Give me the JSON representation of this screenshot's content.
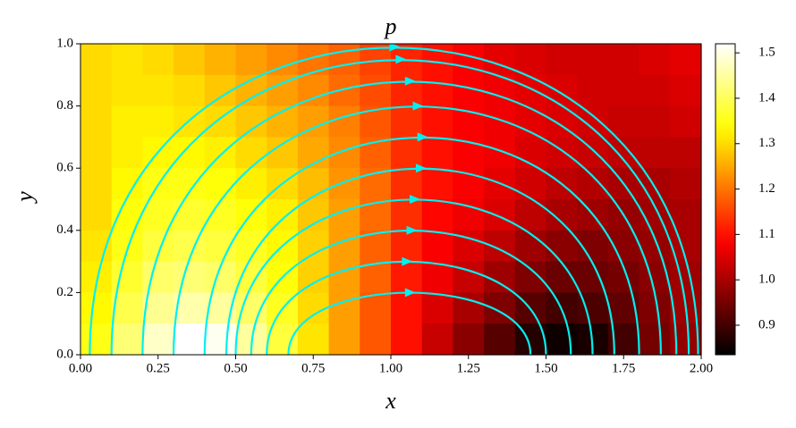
{
  "chart_data": {
    "type": "heatmap",
    "title": "p",
    "xlabel": "x",
    "ylabel": "y",
    "xlim": [
      0,
      2
    ],
    "ylim": [
      0,
      1
    ],
    "xticks": [
      {
        "value": 0,
        "label": "0.00"
      },
      {
        "value": 0.25,
        "label": "0.25"
      },
      {
        "value": 0.5,
        "label": "0.50"
      },
      {
        "value": 0.75,
        "label": "0.75"
      },
      {
        "value": 1,
        "label": "1.00"
      },
      {
        "value": 1.25,
        "label": "1.25"
      },
      {
        "value": 1.5,
        "label": "1.50"
      },
      {
        "value": 1.75,
        "label": "1.75"
      },
      {
        "value": 2,
        "label": "2.00"
      }
    ],
    "yticks": [
      {
        "value": 0,
        "label": "0.0"
      },
      0.2,
      0.4,
      0.6,
      0.8,
      {
        "value": 1,
        "label": "1.0"
      }
    ],
    "colormap": "hot",
    "clim": [
      0.835,
      1.52
    ],
    "colorbar_ticks": [
      0.9,
      {
        "value": 1,
        "label": "1.0"
      },
      1.1,
      1.2,
      1.3,
      1.4,
      1.5
    ],
    "z": [
      [
        1.3,
        1.31,
        1.3,
        1.28,
        1.26,
        1.24,
        1.22,
        1.2,
        1.18,
        1.15,
        1.12,
        1.1,
        1.08,
        1.06,
        1.05,
        1.04,
        1.04,
        1.04,
        1.05,
        1.06
      ],
      [
        1.3,
        1.31,
        1.31,
        1.3,
        1.28,
        1.26,
        1.24,
        1.22,
        1.19,
        1.16,
        1.12,
        1.1,
        1.08,
        1.07,
        1.06,
        1.05,
        1.04,
        1.04,
        1.04,
        1.05
      ],
      [
        1.3,
        1.32,
        1.32,
        1.31,
        1.3,
        1.28,
        1.26,
        1.24,
        1.21,
        1.17,
        1.13,
        1.1,
        1.08,
        1.07,
        1.06,
        1.05,
        1.04,
        1.03,
        1.03,
        1.04
      ],
      [
        1.3,
        1.32,
        1.33,
        1.33,
        1.32,
        1.3,
        1.28,
        1.25,
        1.22,
        1.18,
        1.13,
        1.1,
        1.08,
        1.07,
        1.05,
        1.04,
        1.03,
        1.02,
        1.02,
        1.02
      ],
      [
        1.3,
        1.33,
        1.35,
        1.35,
        1.34,
        1.32,
        1.3,
        1.27,
        1.23,
        1.19,
        1.13,
        1.1,
        1.08,
        1.06,
        1.04,
        1.02,
        1.01,
        1.0,
        1.0,
        1.01
      ],
      [
        1.3,
        1.34,
        1.36,
        1.37,
        1.36,
        1.34,
        1.32,
        1.28,
        1.24,
        1.19,
        1.13,
        1.09,
        1.07,
        1.05,
        1.02,
        1.0,
        0.99,
        0.98,
        0.99,
        1.0
      ],
      [
        1.31,
        1.35,
        1.38,
        1.39,
        1.38,
        1.36,
        1.33,
        1.29,
        1.24,
        1.18,
        1.12,
        1.08,
        1.05,
        1.02,
        0.99,
        0.97,
        0.96,
        0.97,
        0.98,
        1.0
      ],
      [
        1.32,
        1.37,
        1.41,
        1.42,
        1.41,
        1.38,
        1.34,
        1.29,
        1.24,
        1.18,
        1.11,
        1.07,
        1.03,
        0.99,
        0.96,
        0.94,
        0.94,
        0.95,
        0.97,
        0.99
      ],
      [
        1.33,
        1.39,
        1.44,
        1.46,
        1.45,
        1.41,
        1.36,
        1.3,
        1.24,
        1.17,
        1.1,
        1.05,
        1.0,
        0.96,
        0.92,
        0.9,
        0.91,
        0.93,
        0.96,
        0.99
      ],
      [
        1.35,
        1.42,
        1.48,
        1.52,
        1.51,
        1.45,
        1.38,
        1.31,
        1.24,
        1.17,
        1.1,
        1.03,
        0.97,
        0.92,
        0.87,
        0.85,
        0.86,
        0.9,
        0.95,
        0.98
      ]
    ]
  }
}
